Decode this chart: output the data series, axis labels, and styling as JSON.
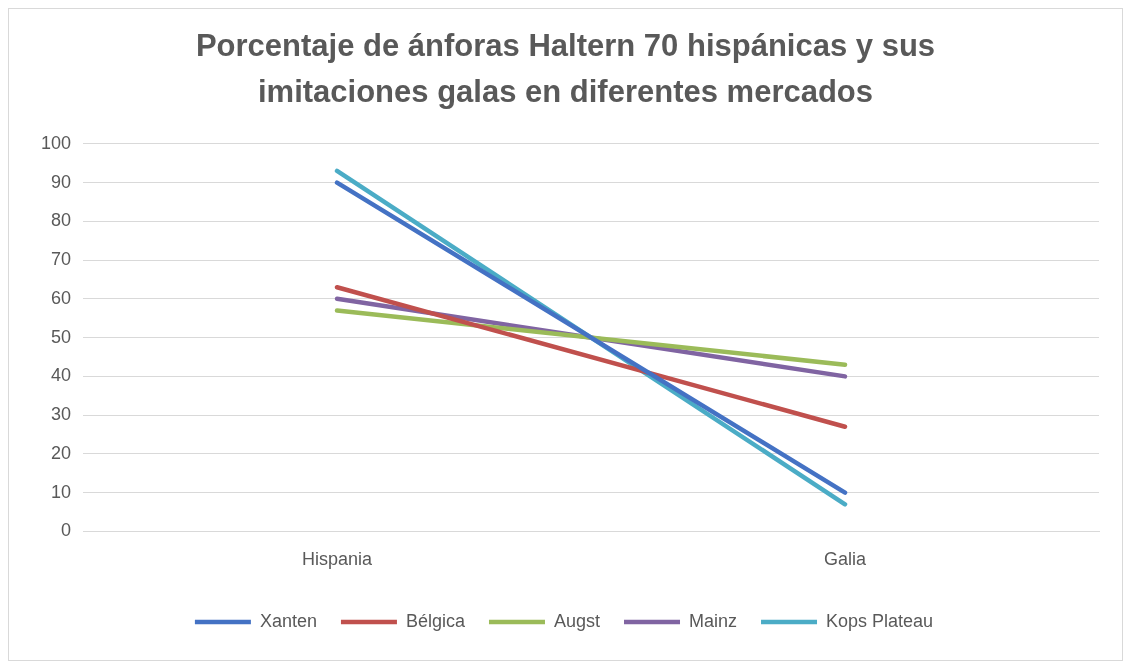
{
  "chart_data": {
    "type": "line",
    "title": "Porcentaje de ánforas Haltern 70 hispánicas y sus imitaciones galas en diferentes mercados",
    "categories": [
      "Hispania",
      "Galia"
    ],
    "series": [
      {
        "name": "Xanten",
        "color": "#4472c4",
        "values": [
          90,
          10
        ]
      },
      {
        "name": "Bélgica",
        "color": "#c0504d",
        "values": [
          63,
          27
        ]
      },
      {
        "name": "Augst",
        "color": "#9bbb59",
        "values": [
          57,
          43
        ]
      },
      {
        "name": "Mainz",
        "color": "#8064a2",
        "values": [
          60,
          40
        ]
      },
      {
        "name": "Kops Plateau",
        "color": "#4bacc6",
        "values": [
          93,
          7
        ]
      }
    ],
    "ylim": [
      0,
      100
    ],
    "yticks": [
      0,
      10,
      20,
      30,
      40,
      50,
      60,
      70,
      80,
      90,
      100
    ],
    "grid": "y",
    "legend": "bottom",
    "marker": "none",
    "line_style": "solid"
  }
}
